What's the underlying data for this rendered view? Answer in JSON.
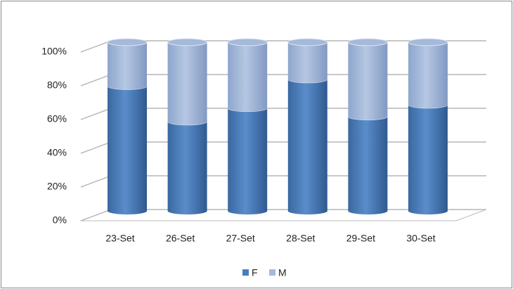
{
  "chart_data": {
    "type": "stacked-cylinder",
    "categories": [
      "23-Set",
      "26-Set",
      "27-Set",
      "28-Set",
      "29-Set",
      "30-Set"
    ],
    "series": [
      {
        "name": "F",
        "color": "#4a7ebb",
        "values": [
          74,
          53,
          61,
          78,
          56,
          63
        ]
      },
      {
        "name": "M",
        "color": "#a5b9da",
        "values": [
          26,
          47,
          39,
          22,
          44,
          37
        ]
      }
    ],
    "ylim": [
      0,
      100
    ],
    "yticks": [
      {
        "value": 0,
        "label": "0%"
      },
      {
        "value": 20,
        "label": "20%"
      },
      {
        "value": 40,
        "label": "40%"
      },
      {
        "value": 60,
        "label": "60%"
      },
      {
        "value": 80,
        "label": "80%"
      },
      {
        "value": 100,
        "label": "100%"
      }
    ],
    "grid": true,
    "legend": "bottom"
  }
}
